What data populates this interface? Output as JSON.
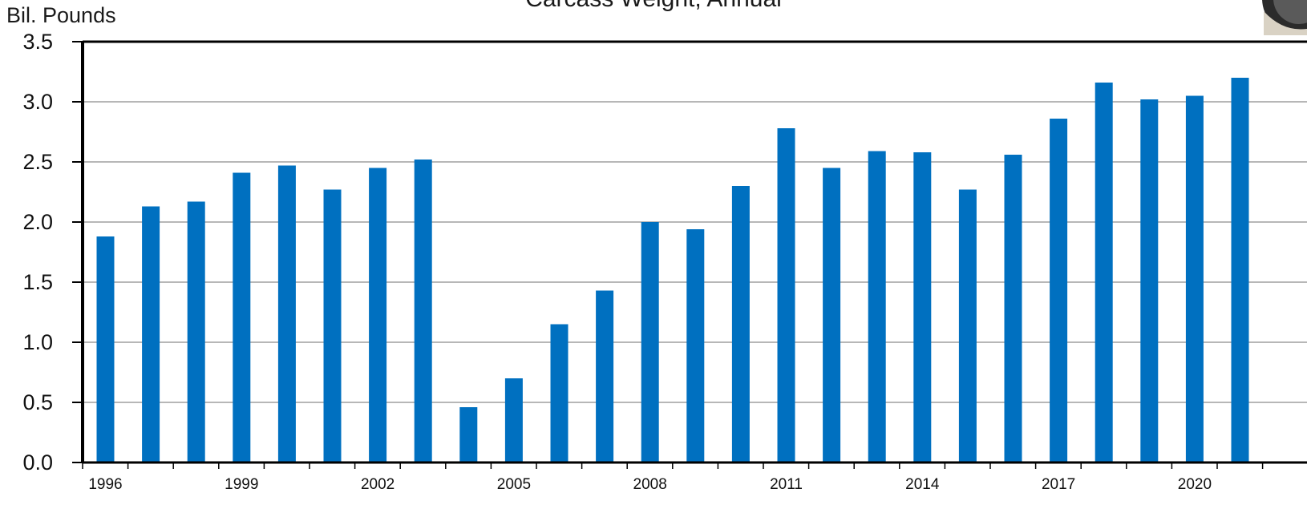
{
  "chart_data": {
    "type": "bar",
    "title": "Carcass Weight, Annual",
    "ylabel": "Bil. Pounds",
    "xlabel": "",
    "ylim": [
      0,
      3.5
    ],
    "yticks": [
      "0.0",
      "0.5",
      "1.0",
      "1.5",
      "2.0",
      "2.5",
      "3.0",
      "3.5"
    ],
    "grid": true,
    "bar_color": "#0070C0",
    "categories": [
      "1996",
      "1997",
      "1998",
      "1999",
      "2000",
      "2001",
      "2002",
      "2003",
      "2004",
      "2005",
      "2006",
      "2007",
      "2008",
      "2009",
      "2010",
      "2011",
      "2012",
      "2013",
      "2014",
      "2015",
      "2016",
      "2017",
      "2018",
      "2019",
      "2020",
      "2021"
    ],
    "xtick_labels": [
      "1996",
      "",
      "",
      "1999",
      "",
      "",
      "2002",
      "",
      "",
      "2005",
      "",
      "",
      "2008",
      "",
      "",
      "2011",
      "",
      "",
      "2014",
      "",
      "",
      "2017",
      "",
      "",
      "2020",
      ""
    ],
    "values": [
      1.88,
      2.13,
      2.17,
      2.41,
      2.47,
      2.27,
      2.45,
      2.52,
      0.46,
      0.7,
      1.15,
      1.43,
      2.0,
      1.94,
      2.3,
      2.78,
      2.45,
      2.59,
      2.58,
      2.27,
      2.56,
      2.86,
      3.16,
      3.02,
      3.05,
      3.2
    ]
  },
  "logo": {
    "icon": "logo-badge-icon"
  }
}
